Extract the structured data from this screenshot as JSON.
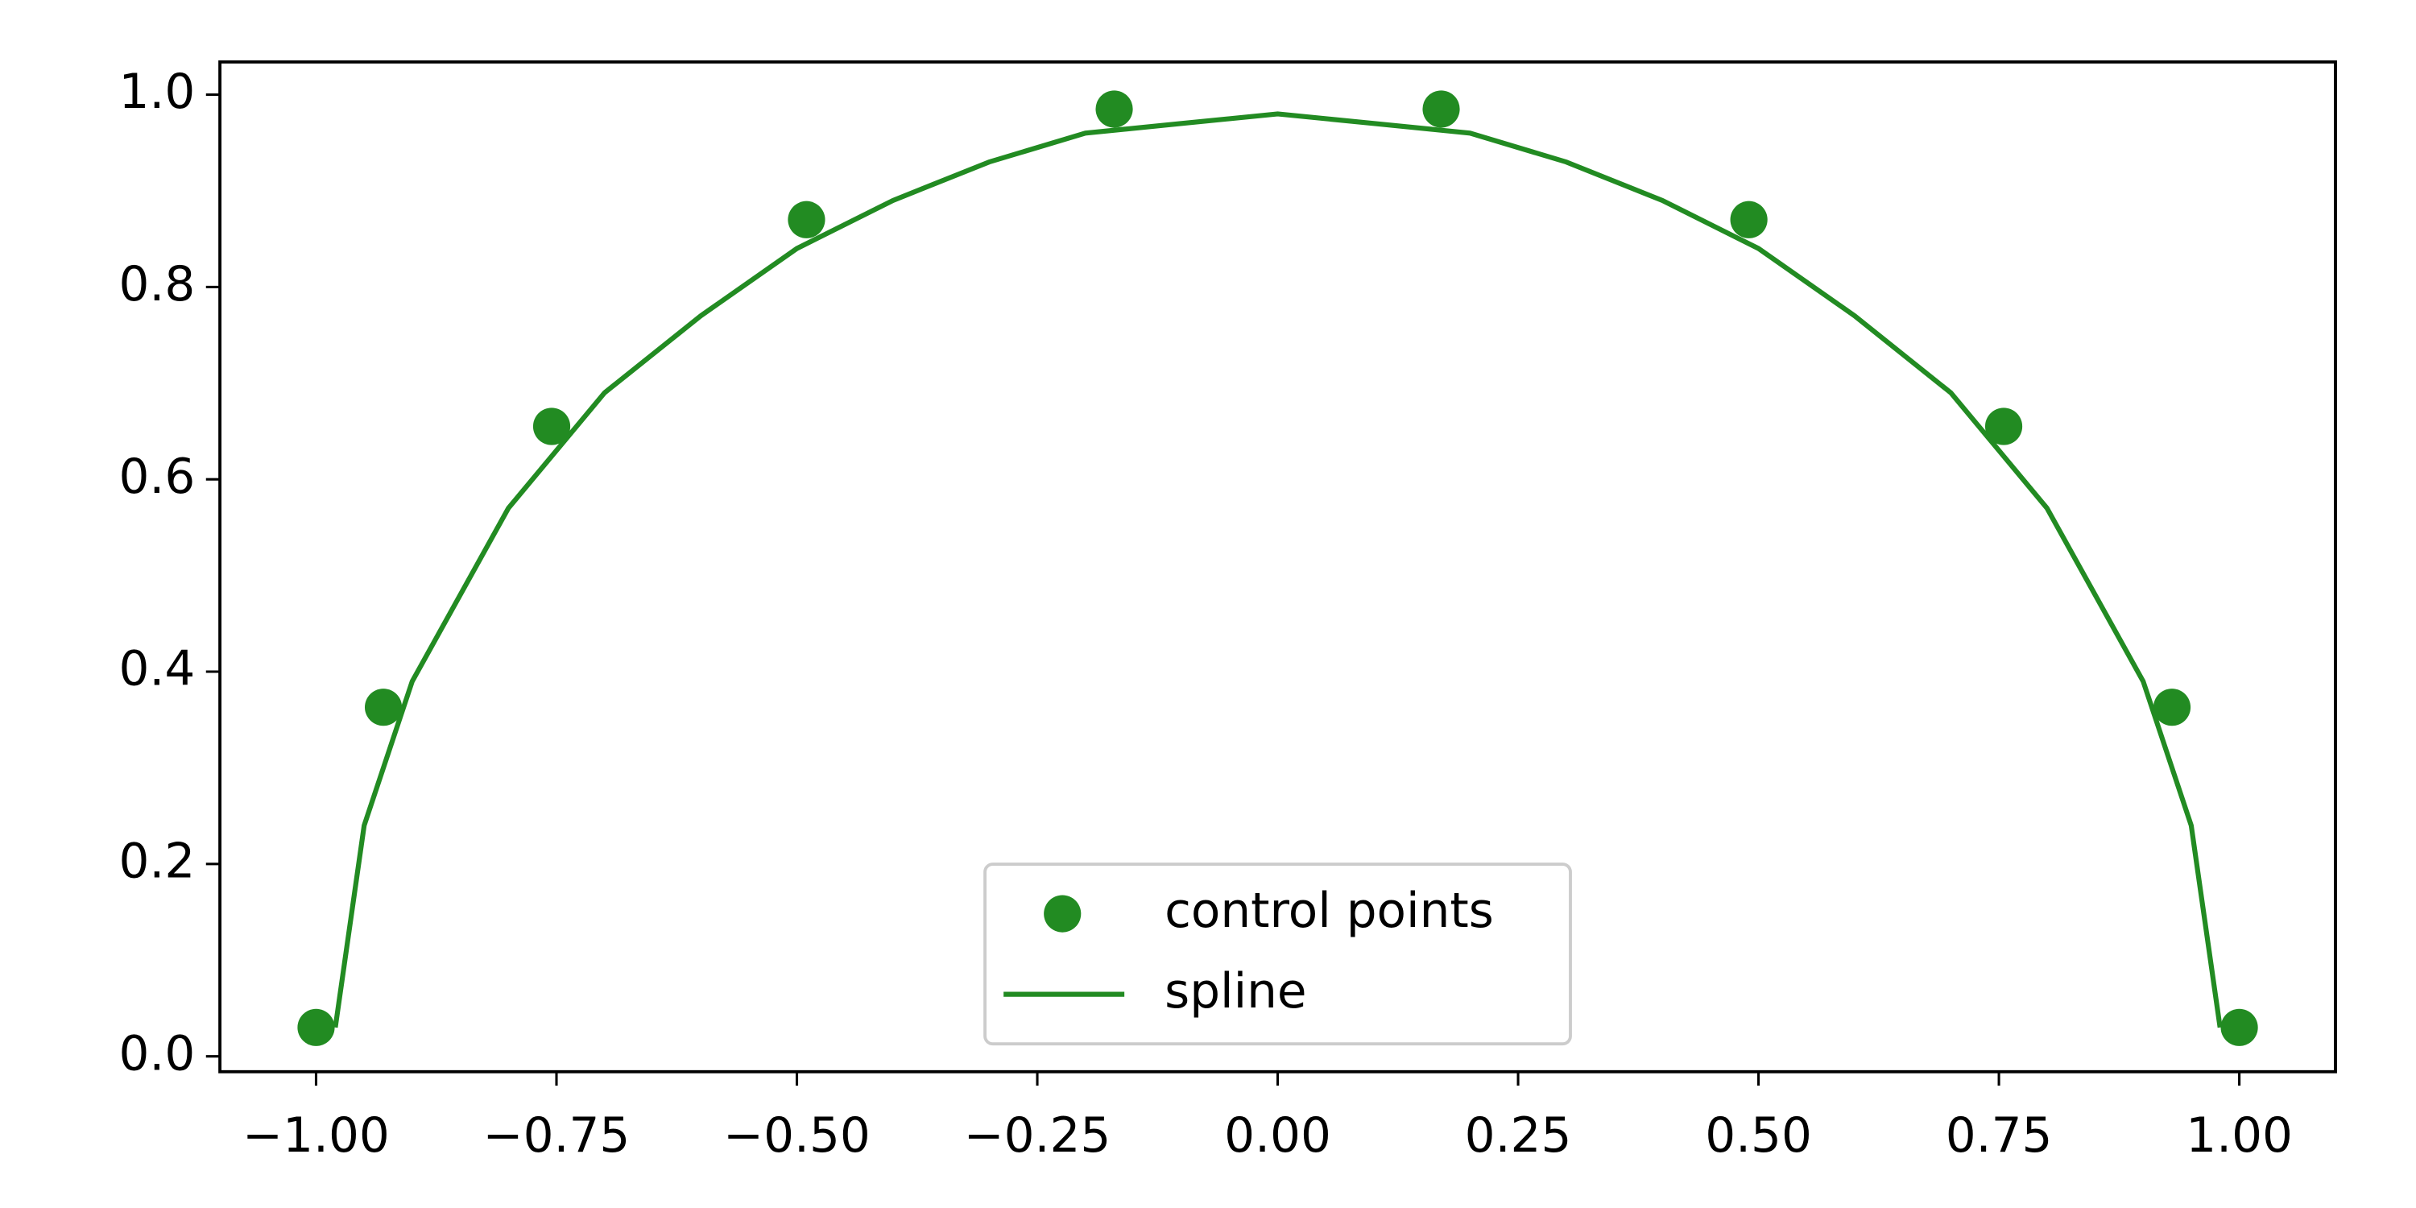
{
  "chart_data": {
    "type": "line",
    "xlim": [
      -1.1,
      1.1
    ],
    "ylim": [
      -0.016,
      1.034
    ],
    "xticks": [
      {
        "value": -1.0,
        "label": "−1.00"
      },
      {
        "value": -0.75,
        "label": "−0.75"
      },
      {
        "value": -0.5,
        "label": "−0.50"
      },
      {
        "value": -0.25,
        "label": "−0.25"
      },
      {
        "value": 0,
        "label": "0.00"
      },
      {
        "value": 0.25,
        "label": "0.25"
      },
      {
        "value": 0.5,
        "label": "0.50"
      },
      {
        "value": 0.75,
        "label": "0.75"
      },
      {
        "value": 1.0,
        "label": "1.00"
      }
    ],
    "yticks": [
      {
        "value": 0,
        "label": "0.0"
      },
      {
        "value": 0.2,
        "label": "0.2"
      },
      {
        "value": 0.4,
        "label": "0.4"
      },
      {
        "value": 0.6,
        "label": "0.6"
      },
      {
        "value": 0.8,
        "label": "0.8"
      },
      {
        "value": 1.0,
        "label": "1.0"
      }
    ],
    "grid": false,
    "legend": "lower center",
    "series": [
      {
        "name": "control points",
        "type": "scatter",
        "color": "#228b22",
        "x": [
          -1.0,
          -0.93,
          -0.755,
          -0.49,
          -0.17,
          0.17,
          0.49,
          0.755,
          0.93,
          1.0
        ],
        "values": [
          0.03,
          0.363,
          0.655,
          0.87,
          0.985,
          0.985,
          0.87,
          0.655,
          0.363,
          0.03
        ]
      },
      {
        "name": "spline",
        "type": "line",
        "color": "#228b22",
        "x": [
          -0.98,
          -0.95,
          -0.9,
          -0.8,
          -0.7,
          -0.6,
          -0.5,
          -0.4,
          -0.3,
          -0.2,
          -0.1,
          0,
          0.1,
          0.2,
          0.3,
          0.4,
          0.5,
          0.6,
          0.7,
          0.8,
          0.9,
          0.95,
          0.98
        ],
        "values": [
          0.03,
          0.24,
          0.39,
          0.57,
          0.69,
          0.77,
          0.84,
          0.89,
          0.93,
          0.96,
          0.97,
          0.98,
          0.97,
          0.96,
          0.93,
          0.89,
          0.84,
          0.77,
          0.69,
          0.57,
          0.39,
          0.24,
          0.03
        ]
      }
    ]
  }
}
